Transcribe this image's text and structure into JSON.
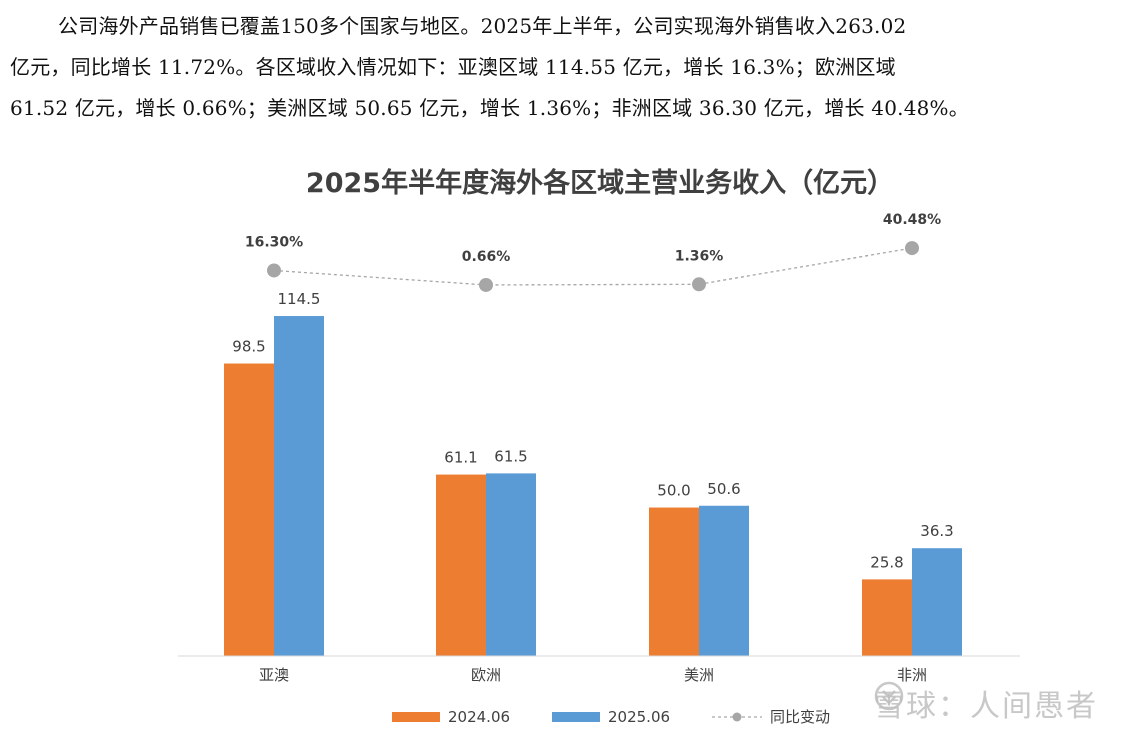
{
  "intro_text": {
    "line1": "公司海外产品销售已覆盖150多个国家与地区。2025年上半年，公司实现海外销售收入263.02",
    "line2": "亿元，同比增长 11.72%。各区域收入情况如下：亚澳区域 114.55 亿元，增长 16.3%；欧洲区域",
    "line3": "61.52 亿元，增长 0.66%；美洲区域 50.65 亿元，增长 1.36%；非洲区域 36.30 亿元，增长 40.48%。"
  },
  "chart_data": {
    "type": "bar",
    "title": "2025年半年度海外各区域主营业务收入（亿元）",
    "categories": [
      "亚澳",
      "欧洲",
      "美洲",
      "非洲"
    ],
    "series": [
      {
        "name": "2024.06",
        "type": "bar",
        "color": "#ED7D31",
        "values": [
          98.5,
          61.1,
          50.0,
          25.8
        ],
        "labels": [
          "98.5",
          "61.1",
          "50.0",
          "25.8"
        ]
      },
      {
        "name": "2025.06",
        "type": "bar",
        "color": "#5B9BD5",
        "values": [
          114.5,
          61.5,
          50.6,
          36.3
        ],
        "labels": [
          "114.5",
          "61.5",
          "50.6",
          "36.3"
        ]
      },
      {
        "name": "同比变动",
        "type": "line",
        "style": "dashed",
        "color": "#A6A6A6",
        "values": [
          16.3,
          0.66,
          1.36,
          40.48
        ],
        "labels": [
          "16.30%",
          "0.66%",
          "1.36%",
          "40.48%"
        ]
      }
    ],
    "xlabel": "",
    "ylabel": "",
    "ylim": [
      0,
      130
    ],
    "y2lim": [
      -400,
      60
    ],
    "grid": false,
    "legend_position": "bottom"
  },
  "watermark": {
    "text": "雪球：人间愚者"
  }
}
